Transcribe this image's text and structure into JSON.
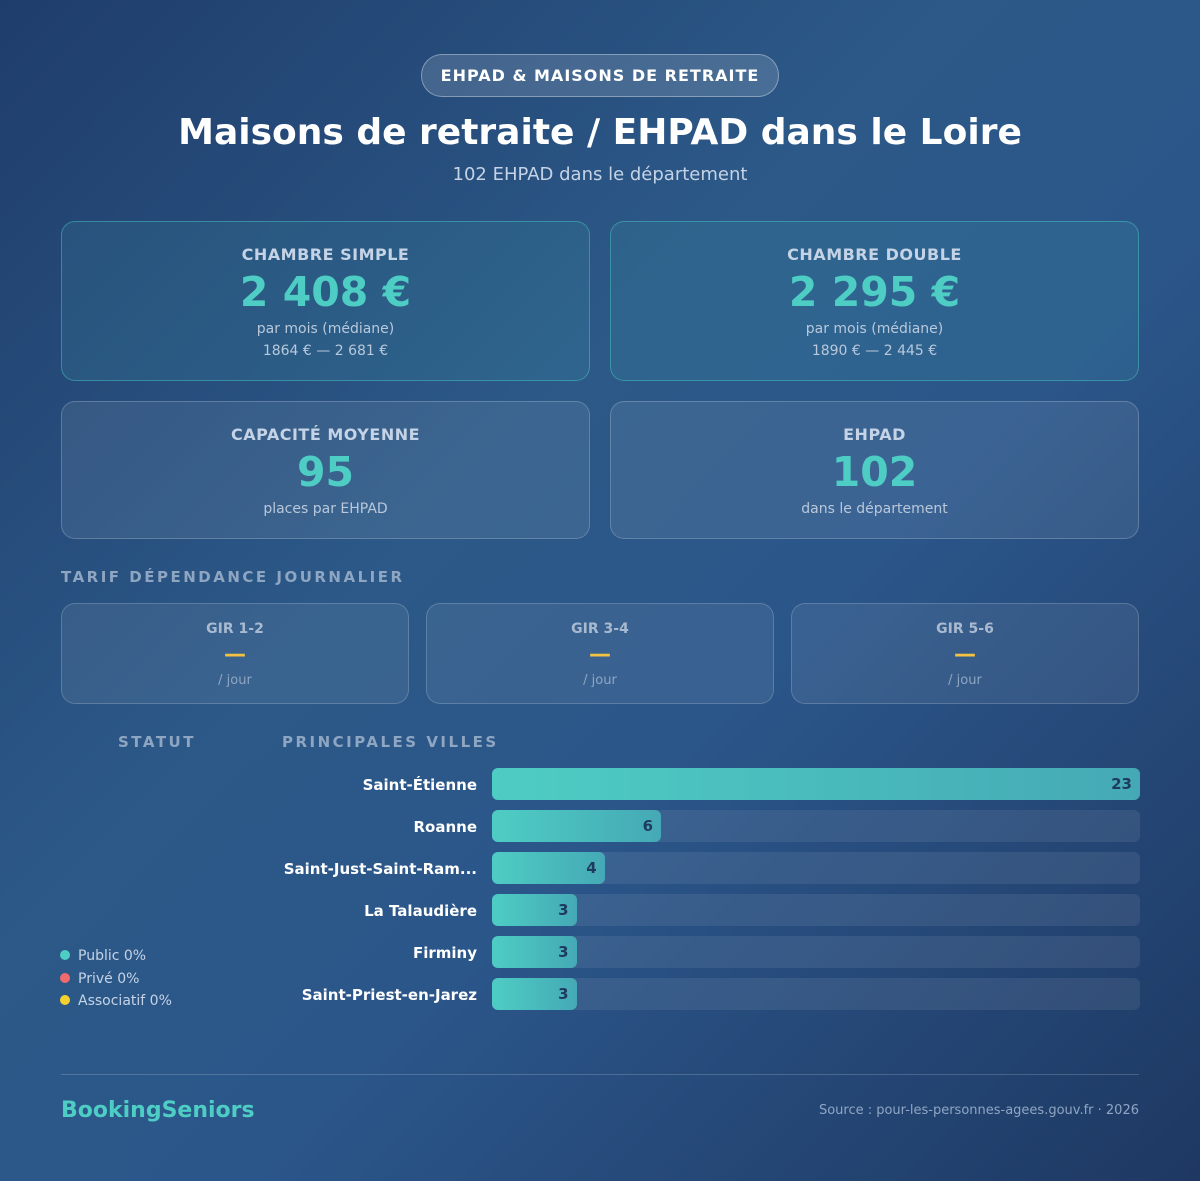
{
  "header": {
    "badge": "EHPAD & MAISONS DE RETRAITE",
    "title": "Maisons de retraite / EHPAD dans le Loire",
    "subtitle": "102 EHPAD dans le département"
  },
  "price_cards": [
    {
      "label": "CHAMBRE SIMPLE",
      "value": "2 408 €",
      "note": "par mois (médiane)",
      "range": "1864 € — 2 681 €"
    },
    {
      "label": "CHAMBRE DOUBLE",
      "value": "2 295 €",
      "note": "par mois (médiane)",
      "range": "1890 € — 2 445 €"
    }
  ],
  "info_cards": [
    {
      "label": "CAPACITÉ MOYENNE",
      "value": "95",
      "note": "places par EHPAD"
    },
    {
      "label": "EHPAD",
      "value": "102",
      "note": "dans le département"
    }
  ],
  "tarif": {
    "title": "TARIF DÉPENDANCE JOURNALIER",
    "cards": [
      {
        "label": "GIR 1-2",
        "value": "—",
        "unit": "/ jour"
      },
      {
        "label": "GIR 3-4",
        "value": "—",
        "unit": "/ jour"
      },
      {
        "label": "GIR 5-6",
        "value": "—",
        "unit": "/ jour"
      }
    ]
  },
  "statut": {
    "title": "STATUT",
    "chart_data": {
      "type": "pie",
      "categories": [
        "Public",
        "Privé",
        "Associatif"
      ],
      "values": [
        0,
        0,
        0
      ],
      "value_labels": [
        "0%",
        "0%",
        "0%"
      ],
      "colors": [
        "#4ecdc4",
        "#f06b6b",
        "#f5d130"
      ]
    }
  },
  "villes": {
    "title": "PRINCIPALES VILLES",
    "chart_data": {
      "type": "bar",
      "categories": [
        "Saint-Étienne",
        "Roanne",
        "Saint-Just-Saint-Ram...",
        "La Talaudière",
        "Firminy",
        "Saint-Priest-en-Jarez"
      ],
      "values": [
        23,
        6,
        4,
        3,
        3,
        3
      ],
      "color": "#4ecdc4"
    }
  },
  "footer": {
    "brand": "BookingSeniors",
    "source": "Source : pour-les-personnes-agees.gouv.fr · 2026"
  }
}
